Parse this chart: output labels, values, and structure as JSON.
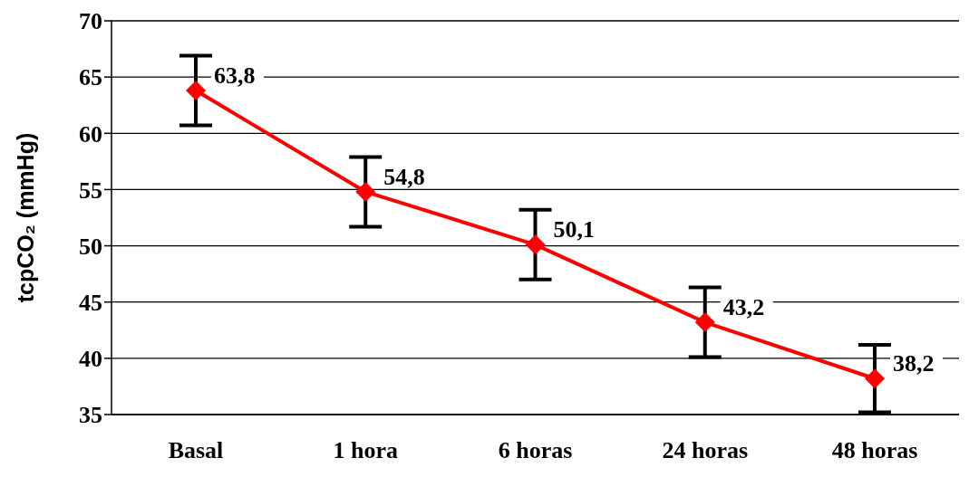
{
  "chart_data": {
    "type": "line",
    "ylabel": "tcpCO₂ (mmHg)",
    "categories": [
      "Basal",
      "1 hora",
      "6 horas",
      "24 horas",
      "48 horas"
    ],
    "series": [
      {
        "color": "#ff0000",
        "values": [
          63.8,
          54.8,
          50.1,
          43.2,
          38.2
        ],
        "errors": [
          3.1,
          3.1,
          3.1,
          3.1,
          3.0
        ],
        "value_labels": [
          "63,8",
          "54,8",
          "50,1",
          "43,2",
          "38,2"
        ]
      }
    ],
    "ylim": [
      35,
      70
    ],
    "yticks": [
      35,
      40,
      45,
      50,
      55,
      60,
      65,
      70
    ],
    "grid": "y",
    "marker": "diamond",
    "line_style": "solid"
  }
}
